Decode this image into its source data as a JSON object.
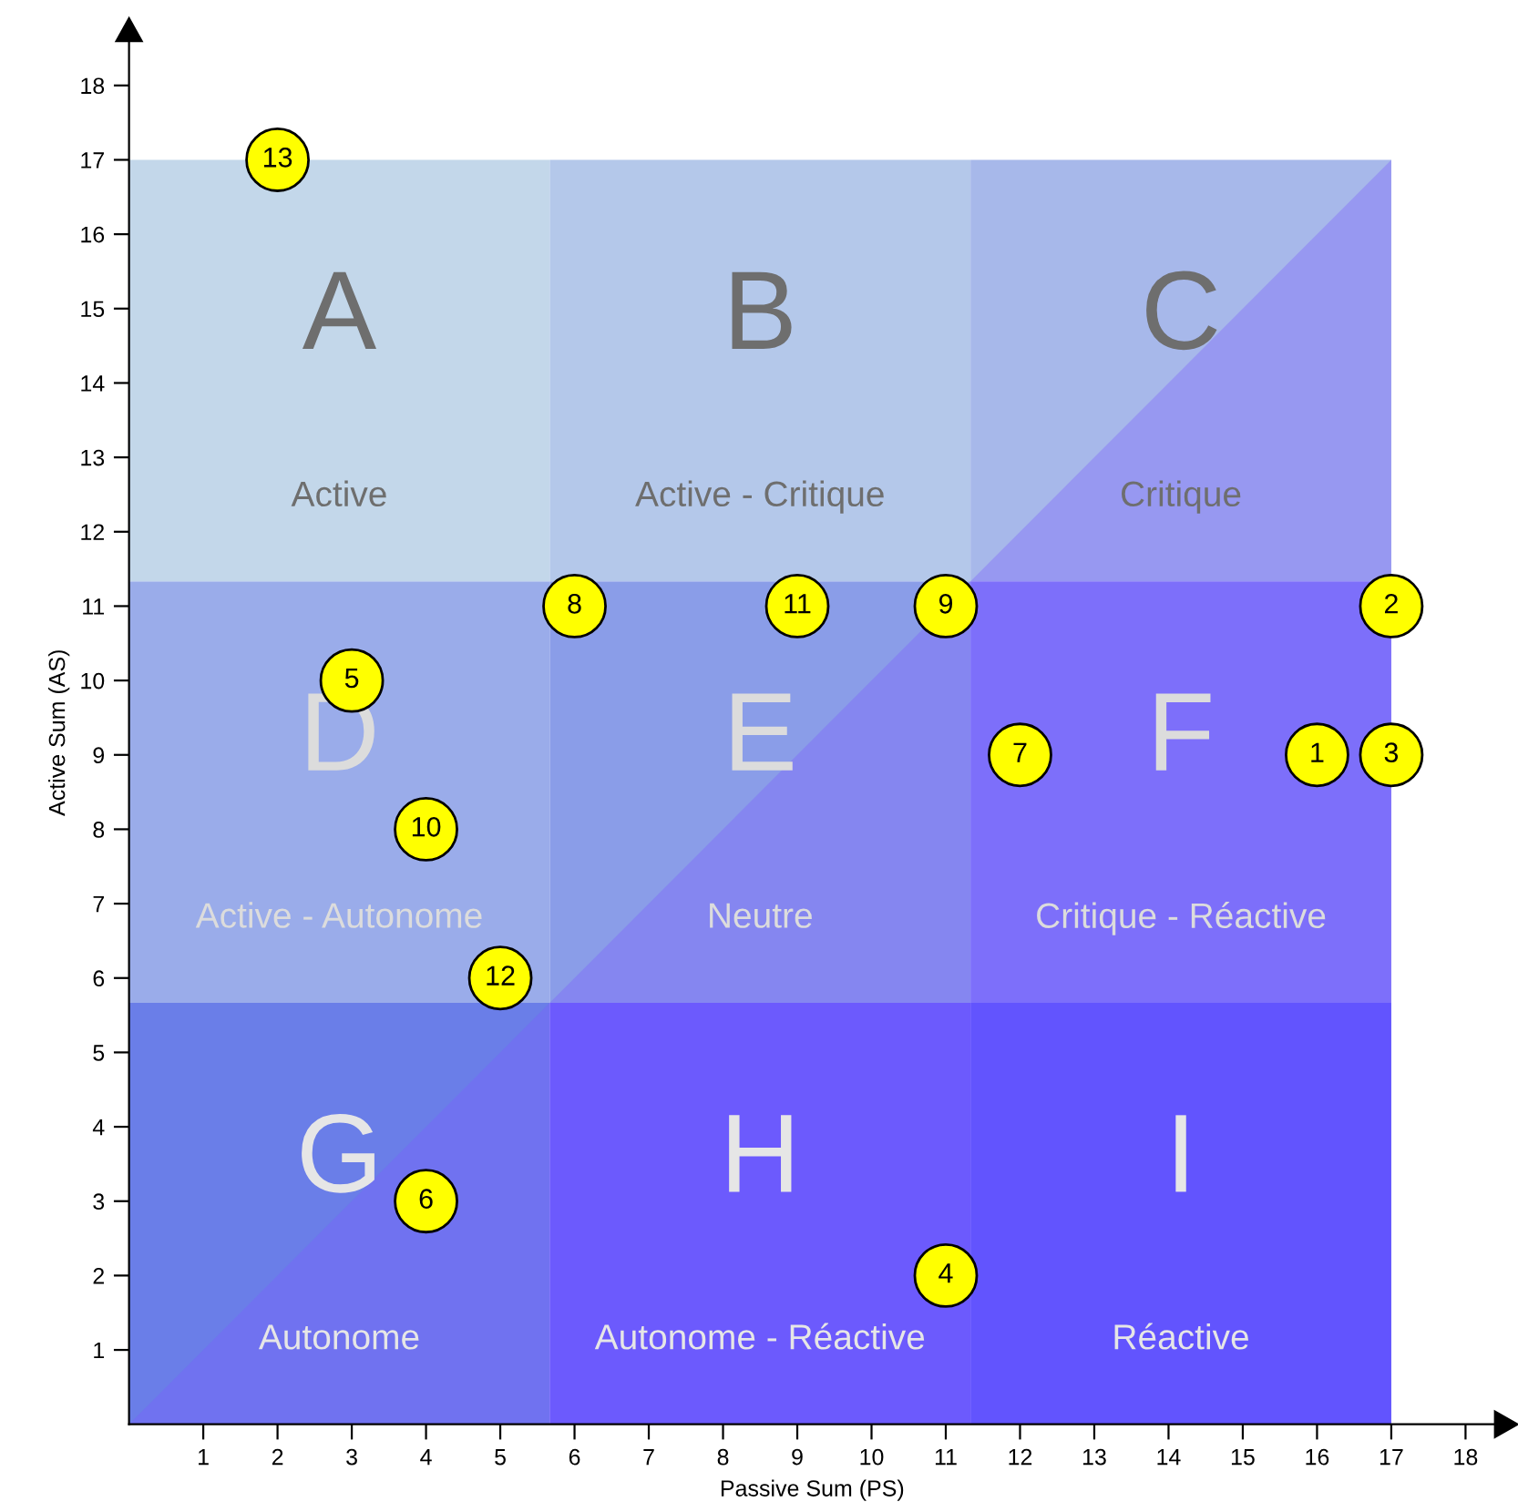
{
  "chart_data": {
    "type": "scatter",
    "xlabel": "Passive Sum (PS)",
    "ylabel": "Active Sum (AS)",
    "xlim": [
      0,
      18.4
    ],
    "ylim": [
      0,
      18.6
    ],
    "xticks": [
      1,
      2,
      3,
      4,
      5,
      6,
      7,
      8,
      9,
      10,
      11,
      12,
      13,
      14,
      15,
      16,
      17,
      18
    ],
    "yticks": [
      1,
      2,
      3,
      4,
      5,
      6,
      7,
      8,
      9,
      10,
      11,
      12,
      13,
      14,
      15,
      16,
      17,
      18
    ],
    "grid": false,
    "marker": "circle",
    "series": [
      {
        "color": "#ffff00",
        "x": [
          16,
          17,
          17,
          11,
          3,
          4,
          12,
          6,
          11,
          4,
          9,
          5,
          2
        ],
        "values": [
          9,
          11,
          9,
          2,
          10,
          3,
          9,
          11,
          11,
          8,
          11,
          6,
          17
        ]
      }
    ],
    "annotations": [
      {
        "text": "1",
        "x": 16,
        "y": 9
      },
      {
        "text": "2",
        "x": 17,
        "y": 11
      },
      {
        "text": "3",
        "x": 17,
        "y": 9
      },
      {
        "text": "4",
        "x": 11,
        "y": 2
      },
      {
        "text": "5",
        "x": 3,
        "y": 10
      },
      {
        "text": "6",
        "x": 4,
        "y": 3
      },
      {
        "text": "7",
        "x": 12,
        "y": 9
      },
      {
        "text": "8",
        "x": 6,
        "y": 11
      },
      {
        "text": "9",
        "x": 11,
        "y": 11
      },
      {
        "text": "10",
        "x": 4,
        "y": 8
      },
      {
        "text": "11",
        "x": 9,
        "y": 11
      },
      {
        "text": "12",
        "x": 5,
        "y": 6
      },
      {
        "text": "13",
        "x": 2,
        "y": 17
      },
      "A",
      "Active",
      "B",
      "Active - Critique",
      "C",
      "Critique",
      "D",
      "Active - Autonome",
      "E",
      "Neutre",
      "F",
      "Critique - Réactive",
      "G",
      "Autonome",
      "H",
      "Autonome - Réactive",
      "I",
      "Réactive"
    ]
  }
}
